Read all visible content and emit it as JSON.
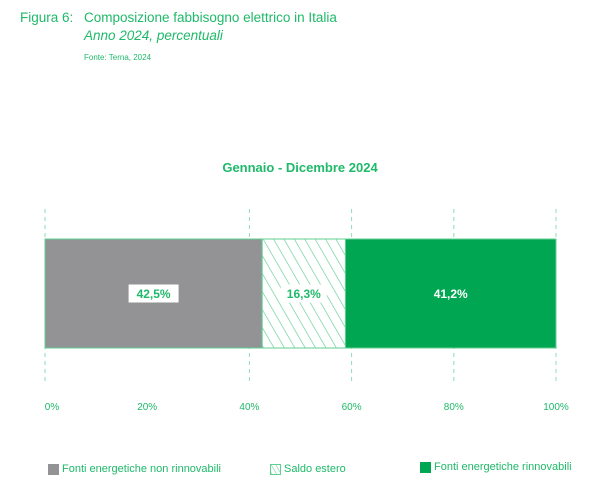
{
  "figure": {
    "label": "Figura 6:",
    "title": "Composizione fabbisogno elettrico in Italia",
    "subtitle": "Anno 2024, percentuali",
    "source": "Fonte: Terna, 2024"
  },
  "colors": {
    "accent": "#1fb96a",
    "non_renewable": "#939396",
    "renewable": "#00a651",
    "hatch": "#5fcf92"
  },
  "chart_data": {
    "type": "bar",
    "orientation": "horizontal",
    "stacked": true,
    "title": "Gennaio - Dicembre 2024",
    "categories": [
      "Gennaio - Dicembre 2024"
    ],
    "series": [
      {
        "name": "Fonti energetiche non rinnovabili",
        "values": [
          42.5
        ],
        "label": "42,5%",
        "style": "solid-gray"
      },
      {
        "name": "Saldo estero",
        "values": [
          16.3
        ],
        "label": "16,3%",
        "style": "hatched"
      },
      {
        "name": "Fonti energetiche rinnovabili",
        "values": [
          41.2
        ],
        "label": "41,2%",
        "style": "solid-green"
      }
    ],
    "xlim": [
      0,
      100
    ],
    "xticks": [
      0,
      20,
      40,
      60,
      80,
      100
    ],
    "xtick_labels": [
      "0%",
      "20%",
      "40%",
      "60%",
      "80%",
      "100%"
    ],
    "gridlines": [
      0,
      40,
      60,
      80,
      100
    ],
    "grid": true,
    "xlabel": "",
    "ylabel": "",
    "legend_position": "bottom"
  }
}
